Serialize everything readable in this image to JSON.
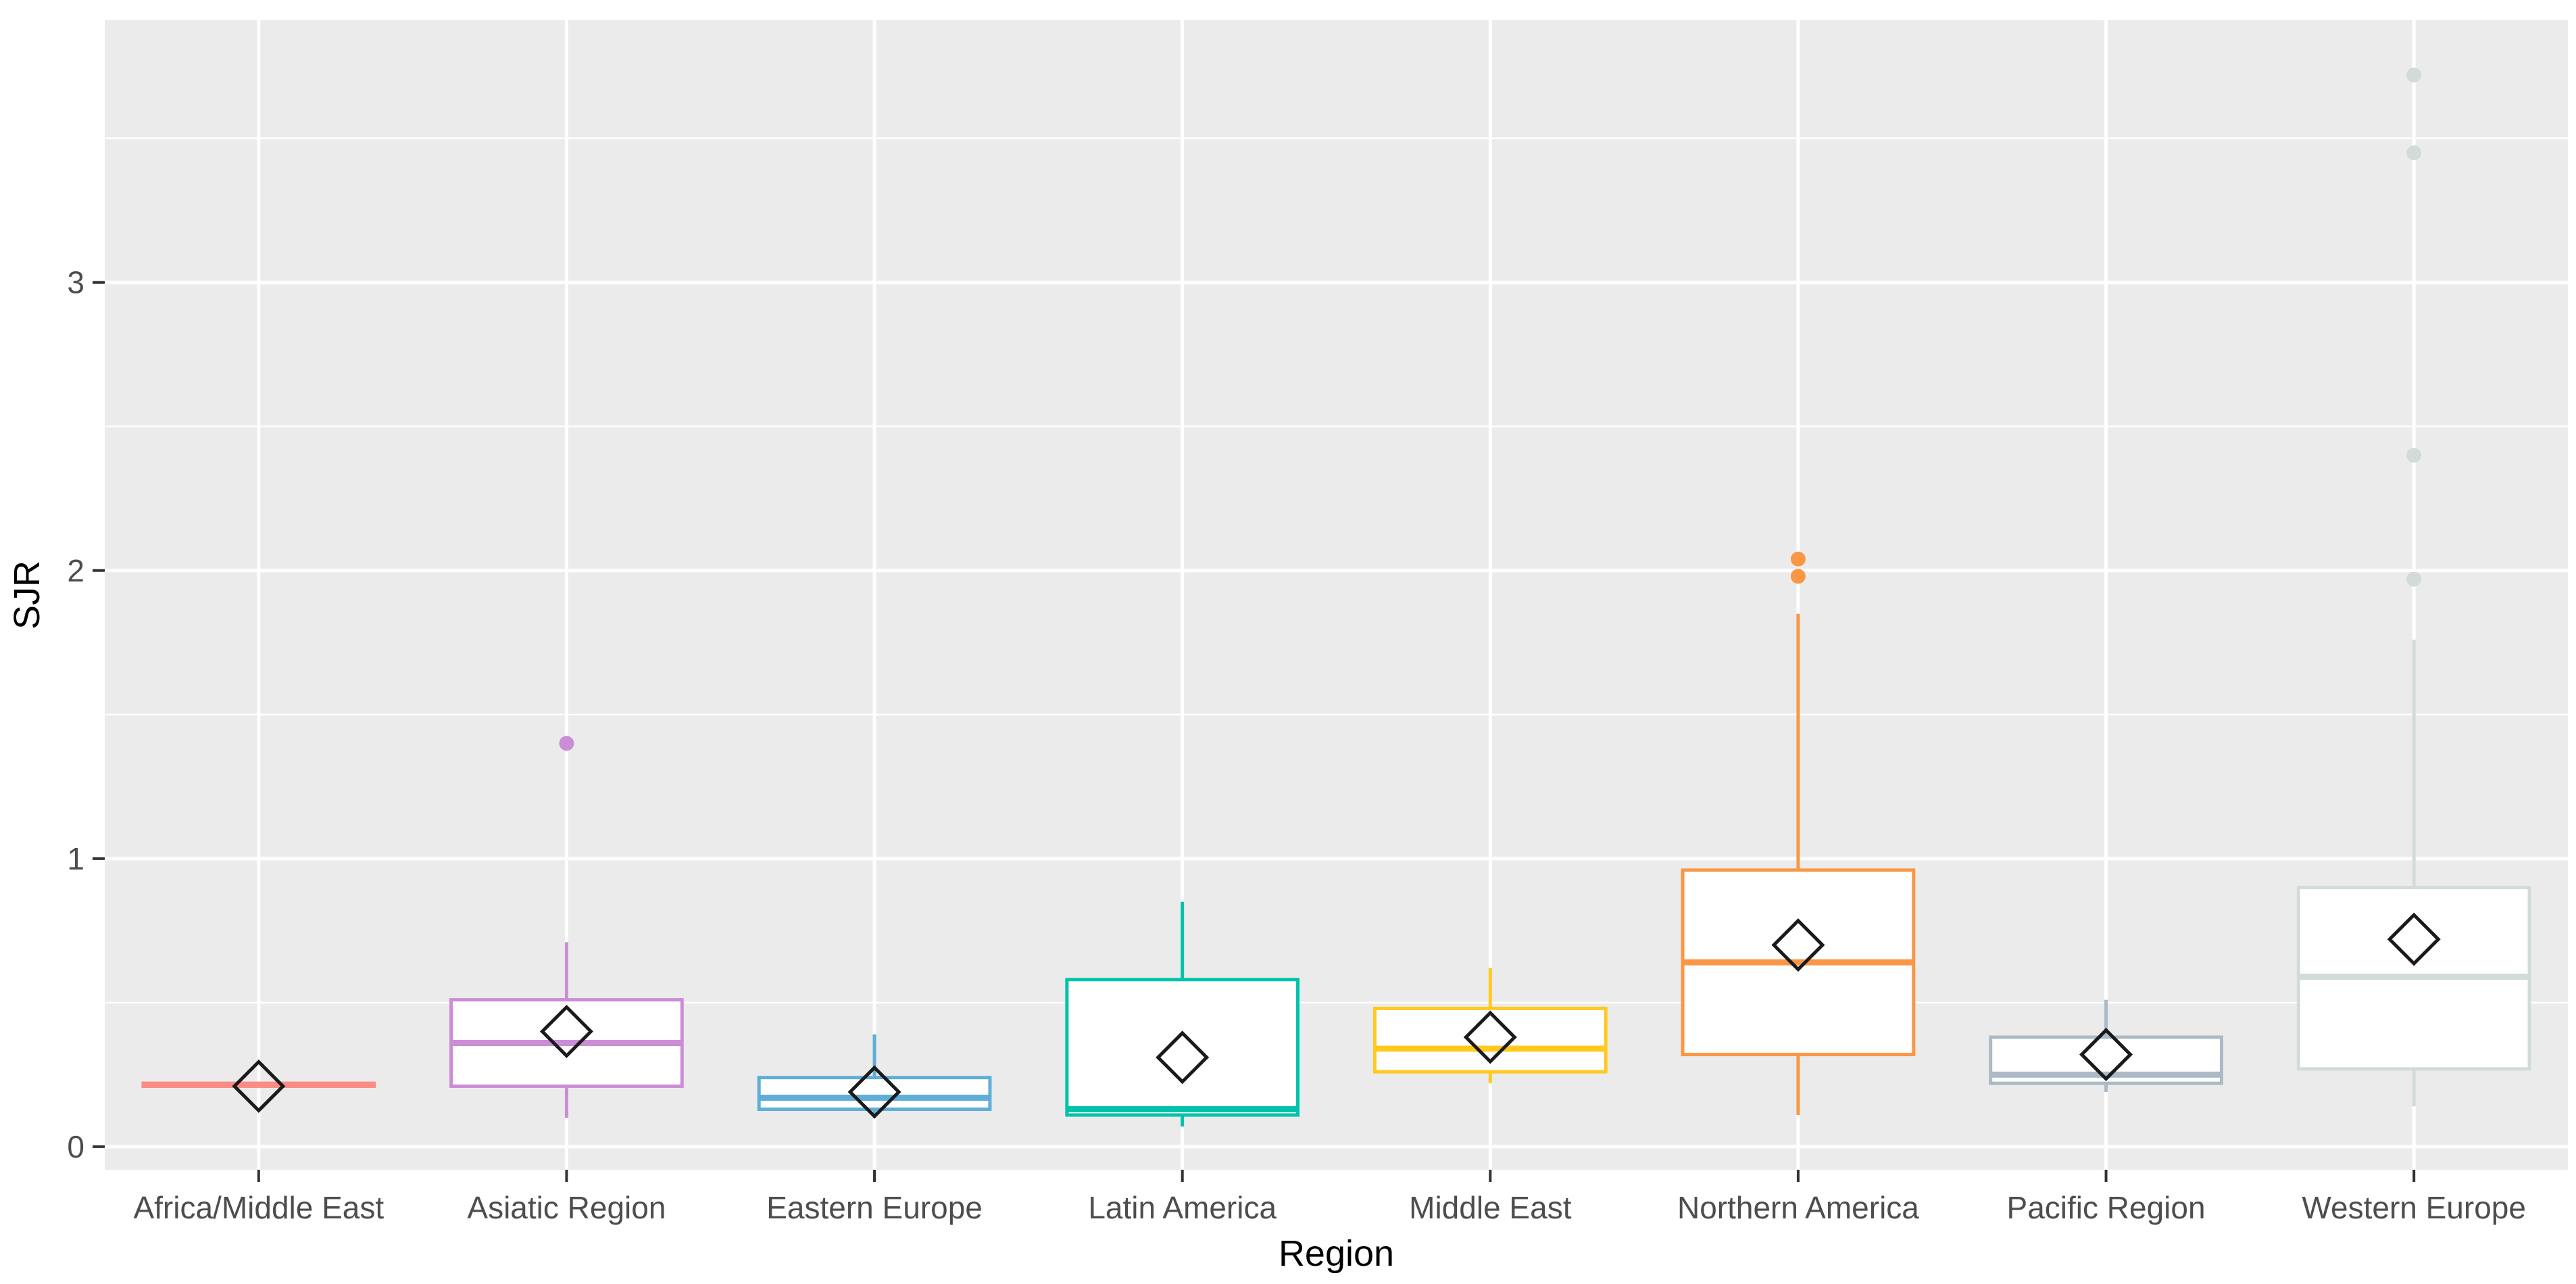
{
  "figure": {
    "kind": "boxplot-figure",
    "background": "#ffffff",
    "panel_background": "#EBEBEB",
    "gridline_color": "#FFFFFF",
    "tick_mark_color": "#333333",
    "tick_label_color": "#4D4D4D",
    "axis_title_color": "#000000",
    "mean_marker_color": "#1a1a1a"
  },
  "chart_data": {
    "type": "boxplot",
    "title": "",
    "xlabel": "Region",
    "ylabel": "SJR",
    "ylim": [
      -0.08,
      3.91
    ],
    "yticks": [
      0,
      1,
      2,
      3
    ],
    "ytick_labels": [
      "0",
      "1",
      "2",
      "3"
    ],
    "minor_gridlines": [
      0.5,
      1.5,
      2.5,
      3.5
    ],
    "grid": "on",
    "legend": "none",
    "mean_marker": "open-diamond",
    "categories": [
      "Africa/Middle East",
      "Asiatic Region",
      "Eastern Europe",
      "Latin America",
      "Middle East",
      "Northern America",
      "Pacific Region",
      "Western Europe"
    ],
    "series": [
      {
        "label": "Africa/Middle East",
        "color": "#F98D85",
        "whisker_low": 0.21,
        "q1": 0.21,
        "median": 0.215,
        "q3": 0.22,
        "whisker_high": 0.22,
        "mean": 0.21,
        "outliers": []
      },
      {
        "label": "Asiatic Region",
        "color": "#CB8DD5",
        "whisker_low": 0.1,
        "q1": 0.21,
        "median": 0.36,
        "q3": 0.51,
        "whisker_high": 0.71,
        "mean": 0.4,
        "outliers": [
          1.4
        ]
      },
      {
        "label": "Eastern Europe",
        "color": "#5FAED8",
        "whisker_low": 0.1,
        "q1": 0.13,
        "median": 0.17,
        "q3": 0.24,
        "whisker_high": 0.39,
        "mean": 0.19,
        "outliers": []
      },
      {
        "label": "Latin America",
        "color": "#00C3A9",
        "whisker_low": 0.07,
        "q1": 0.11,
        "median": 0.13,
        "q3": 0.58,
        "whisker_high": 0.85,
        "mean": 0.31,
        "outliers": []
      },
      {
        "label": "Middle East",
        "color": "#FFC91F",
        "whisker_low": 0.22,
        "q1": 0.26,
        "median": 0.34,
        "q3": 0.48,
        "whisker_high": 0.62,
        "mean": 0.38,
        "outliers": []
      },
      {
        "label": "Northern America",
        "color": "#F99746",
        "whisker_low": 0.11,
        "q1": 0.32,
        "median": 0.64,
        "q3": 0.96,
        "whisker_high": 1.85,
        "mean": 0.7,
        "outliers": [
          1.98,
          2.04
        ]
      },
      {
        "label": "Pacific Region",
        "color": "#ABBAC6",
        "whisker_low": 0.19,
        "q1": 0.22,
        "median": 0.25,
        "q3": 0.38,
        "whisker_high": 0.51,
        "mean": 0.32,
        "outliers": []
      },
      {
        "label": "Western Europe",
        "color": "#D2DBD8",
        "whisker_low": 0.14,
        "q1": 0.27,
        "median": 0.59,
        "q3": 0.9,
        "whisker_high": 1.76,
        "mean": 0.72,
        "outliers": [
          1.97,
          2.4,
          3.45,
          3.72
        ]
      }
    ]
  }
}
